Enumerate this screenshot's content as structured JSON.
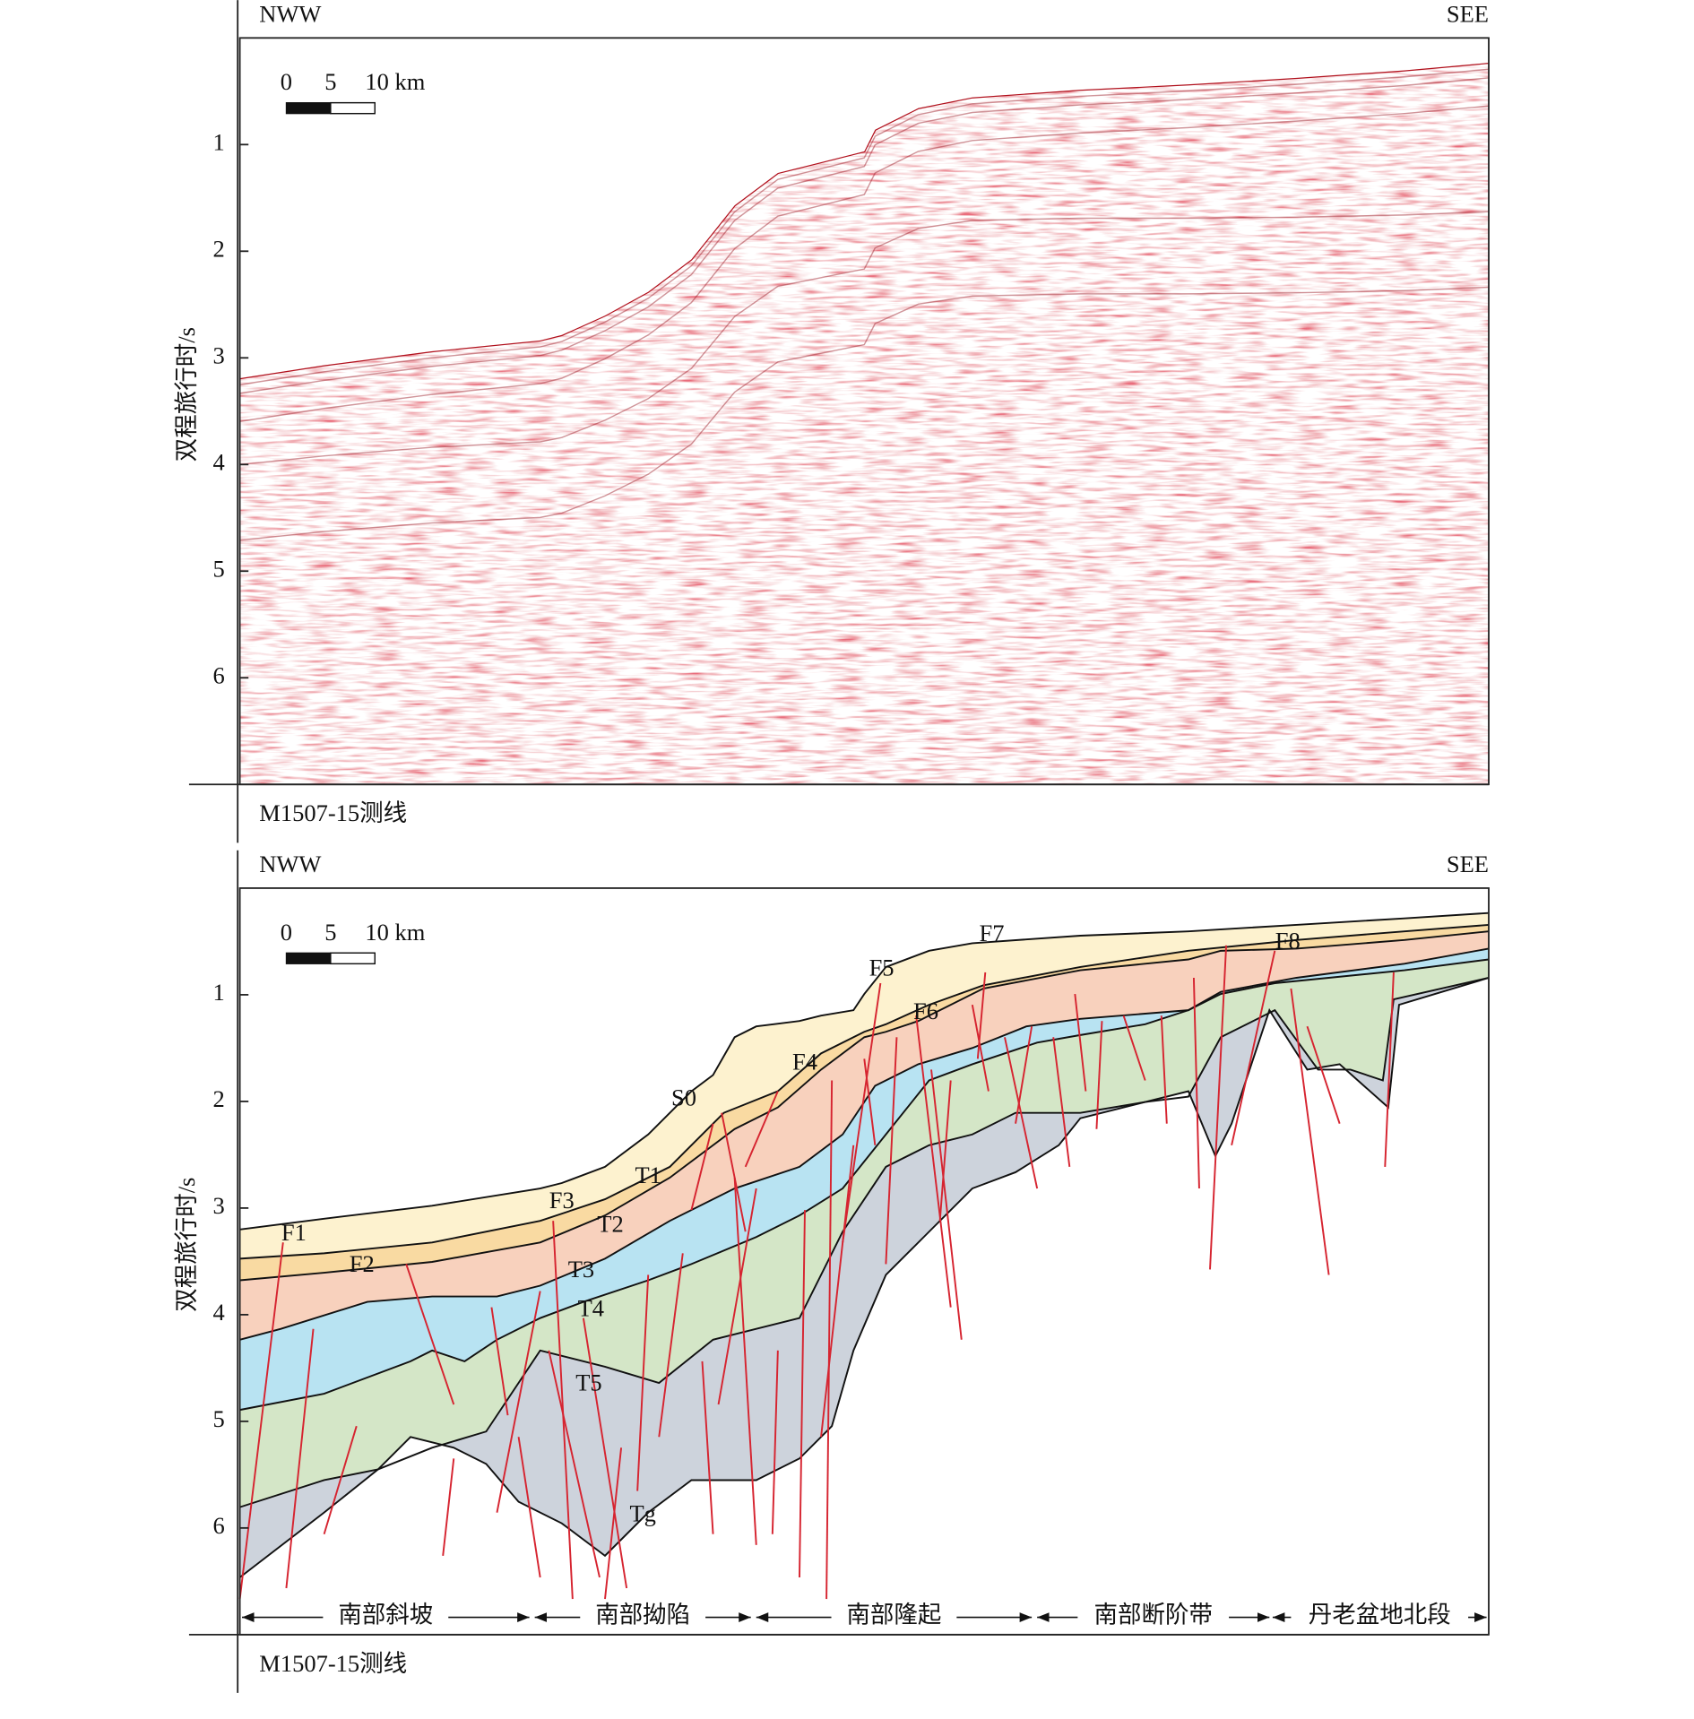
{
  "panels": [
    {
      "direction_left": "NWW",
      "direction_right": "SEE",
      "scale_labels": [
        "0",
        "5",
        "10 km"
      ],
      "y_axis_label": "双程旅行时/s",
      "ylim": [
        0,
        7
      ],
      "yticks": [
        1,
        2,
        3,
        4,
        5,
        6
      ],
      "caption": "M1507-15测线"
    },
    {
      "direction_left": "NWW",
      "direction_right": "SEE",
      "scale_labels": [
        "0",
        "5",
        "10 km"
      ],
      "y_axis_label": "双程旅行时/s",
      "ylim": [
        0,
        7
      ],
      "yticks": [
        1,
        2,
        3,
        4,
        5,
        6
      ],
      "caption": "M1507-15测线",
      "horizons": [
        "S0",
        "T1",
        "T2",
        "T3",
        "T4",
        "T5",
        "Tg"
      ],
      "faults": [
        "F1",
        "F2",
        "F3",
        "F4",
        "F5",
        "F6",
        "F7",
        "F8"
      ],
      "zones": [
        "南部斜坡",
        "南部拗陷",
        "南部隆起",
        "南部断阶带",
        "丹老盆地北段"
      ]
    }
  ]
}
